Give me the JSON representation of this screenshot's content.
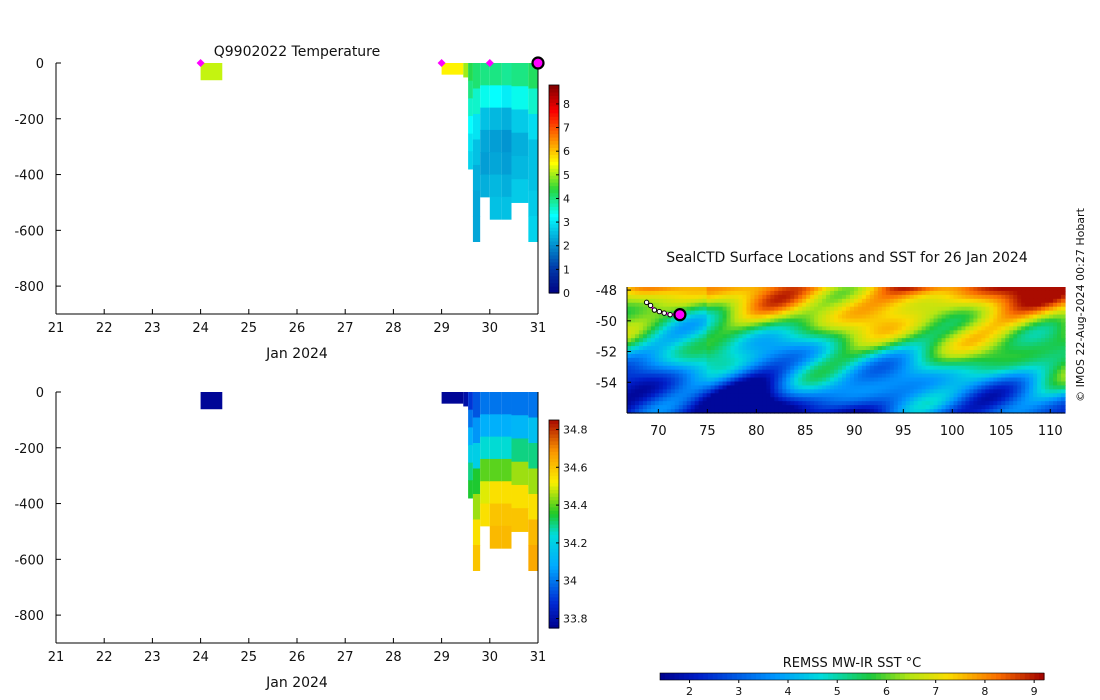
{
  "figure_title": "Q9902022  Temperature",
  "map_title": "SealCTD Surface Locations and SST for 26 Jan 2024",
  "credit": "© IMOS 22-Aug-2024 00:27 Hobart",
  "colors": {
    "magenta": "#ff00ff",
    "profile_marker": "#ff00ff",
    "sst_ring": "#000000"
  },
  "chart_data": [
    {
      "name": "temperature-section",
      "type": "heatmap",
      "title": "Q9902022  Temperature",
      "xlabel": "Jan 2024",
      "ylabel": "",
      "xlim": [
        21,
        31
      ],
      "ylim": [
        -900,
        0
      ],
      "x_ticks": [
        "21",
        "22",
        "23",
        "24",
        "25",
        "26",
        "27",
        "28",
        "29",
        "30",
        "31"
      ],
      "y_ticks": [
        "0",
        "-200",
        "-400",
        "-600",
        "-800"
      ],
      "y_tick_values": [
        0,
        -200,
        -400,
        -600,
        -800
      ],
      "colorbar": {
        "min": 0,
        "max": 8.8,
        "ticks": [
          "0",
          "1",
          "2",
          "3",
          "4",
          "5",
          "6",
          "7",
          "8"
        ],
        "tick_values": [
          0,
          1,
          2,
          3,
          4,
          5,
          6,
          7,
          8
        ]
      },
      "profile_markers_day": [
        24.0,
        29.0,
        30.0,
        31.0
      ],
      "columns": [
        {
          "x0": 24.0,
          "x1": 24.45,
          "depth": [
            0,
            -60
          ],
          "values": [
            5.2
          ]
        },
        {
          "x0": 29.0,
          "x1": 29.45,
          "depth": [
            0,
            -40
          ],
          "values": [
            5.6
          ]
        },
        {
          "x0": 29.45,
          "x1": 29.55,
          "depth": [
            0,
            -50
          ],
          "values": [
            5.0
          ]
        },
        {
          "x0": 29.55,
          "x1": 29.65,
          "depth": [
            0,
            -380
          ],
          "values": [
            4.3,
            4.0,
            3.6,
            3.3,
            3.0,
            2.8
          ]
        },
        {
          "x0": 29.65,
          "x1": 29.8,
          "depth": [
            0,
            -640
          ],
          "values": [
            4.1,
            3.6,
            3.0,
            2.6,
            2.4,
            2.3,
            2.3
          ]
        },
        {
          "x0": 29.8,
          "x1": 30.0,
          "depth": [
            0,
            -480
          ],
          "values": [
            4.0,
            3.4,
            2.6,
            2.3,
            2.2,
            2.4
          ]
        },
        {
          "x0": 30.0,
          "x1": 30.25,
          "depth": [
            0,
            -560
          ],
          "values": [
            4.0,
            3.3,
            2.5,
            2.2,
            2.3,
            2.5,
            2.6
          ]
        },
        {
          "x0": 30.25,
          "x1": 30.45,
          "depth": [
            0,
            -560
          ],
          "values": [
            3.9,
            3.1,
            2.4,
            2.1,
            2.2,
            2.4,
            2.6
          ]
        },
        {
          "x0": 30.45,
          "x1": 30.8,
          "depth": [
            0,
            -500
          ],
          "values": [
            4.0,
            3.4,
            2.7,
            2.4,
            2.5,
            2.7
          ]
        },
        {
          "x0": 30.8,
          "x1": 31.0,
          "depth": [
            0,
            -640
          ],
          "values": [
            4.2,
            3.6,
            2.9,
            2.6,
            2.6,
            2.7,
            2.8
          ]
        }
      ]
    },
    {
      "name": "salinity-section",
      "type": "heatmap",
      "title": "",
      "xlabel": "Jan 2024",
      "ylabel": "",
      "xlim": [
        21,
        31
      ],
      "ylim": [
        -900,
        0
      ],
      "x_ticks": [
        "21",
        "22",
        "23",
        "24",
        "25",
        "26",
        "27",
        "28",
        "29",
        "30",
        "31"
      ],
      "y_ticks": [
        "0",
        "-200",
        "-400",
        "-600",
        "-800"
      ],
      "y_tick_values": [
        0,
        -200,
        -400,
        -600,
        -800
      ],
      "colorbar": {
        "min": 33.75,
        "max": 34.85,
        "ticks": [
          "33.8",
          "34",
          "34.2",
          "34.4",
          "34.6",
          "34.8"
        ],
        "tick_values": [
          33.8,
          34.0,
          34.2,
          34.4,
          34.6,
          34.8
        ]
      },
      "columns": [
        {
          "x0": 24.0,
          "x1": 24.45,
          "depth": [
            0,
            -60
          ],
          "values": [
            33.77
          ]
        },
        {
          "x0": 29.0,
          "x1": 29.45,
          "depth": [
            0,
            -40
          ],
          "values": [
            33.77
          ]
        },
        {
          "x0": 29.45,
          "x1": 29.55,
          "depth": [
            0,
            -50
          ],
          "values": [
            33.8
          ]
        },
        {
          "x0": 29.55,
          "x1": 29.65,
          "depth": [
            0,
            -380
          ],
          "values": [
            33.9,
            34.0,
            34.1,
            34.2,
            34.3,
            34.35
          ]
        },
        {
          "x0": 29.65,
          "x1": 29.8,
          "depth": [
            0,
            -640
          ],
          "values": [
            33.95,
            34.05,
            34.2,
            34.35,
            34.45,
            34.55,
            34.6
          ]
        },
        {
          "x0": 29.8,
          "x1": 30.0,
          "depth": [
            0,
            -480
          ],
          "values": [
            34.0,
            34.1,
            34.25,
            34.4,
            34.5,
            34.55
          ]
        },
        {
          "x0": 30.0,
          "x1": 30.25,
          "depth": [
            0,
            -560
          ],
          "values": [
            34.0,
            34.1,
            34.25,
            34.4,
            34.55,
            34.6,
            34.62
          ]
        },
        {
          "x0": 30.25,
          "x1": 30.45,
          "depth": [
            0,
            -560
          ],
          "values": [
            34.0,
            34.1,
            34.25,
            34.4,
            34.55,
            34.6,
            34.62
          ]
        },
        {
          "x0": 30.45,
          "x1": 30.8,
          "depth": [
            0,
            -500
          ],
          "values": [
            34.0,
            34.12,
            34.3,
            34.45,
            34.55,
            34.6
          ]
        },
        {
          "x0": 30.8,
          "x1": 31.0,
          "depth": [
            0,
            -640
          ],
          "values": [
            34.0,
            34.15,
            34.3,
            34.45,
            34.55,
            34.62,
            34.65
          ]
        }
      ]
    },
    {
      "name": "sst-map",
      "type": "heatmap",
      "title": "SealCTD Surface Locations and SST for 26 Jan 2024",
      "xlabel": "",
      "ylabel": "",
      "xlim": [
        66.8,
        111.5
      ],
      "ylim": [
        -56.0,
        -47.8
      ],
      "x_ticks": [
        "70",
        "75",
        "80",
        "85",
        "90",
        "95",
        "100",
        "105",
        "110"
      ],
      "x_tick_values": [
        70,
        75,
        80,
        85,
        90,
        95,
        100,
        105,
        110
      ],
      "y_ticks": [
        "-48",
        "-50",
        "-52",
        "-54"
      ],
      "y_tick_values": [
        -48,
        -50,
        -52,
        -54
      ],
      "colorbar": {
        "label": "REMSS MW-IR SST °C",
        "min": 1.4,
        "max": 9.2,
        "ticks": [
          "2",
          "3",
          "4",
          "5",
          "6",
          "7",
          "8",
          "9"
        ],
        "tick_values": [
          2,
          3,
          4,
          5,
          6,
          7,
          8,
          9
        ]
      },
      "seal_track": [
        [
          68.8,
          -48.8
        ],
        [
          69.2,
          -49.0
        ],
        [
          69.6,
          -49.3
        ],
        [
          70.1,
          -49.4
        ],
        [
          70.6,
          -49.5
        ],
        [
          71.2,
          -49.6
        ],
        [
          72.2,
          -49.6
        ]
      ],
      "latest_position": [
        72.2,
        -49.6
      ],
      "sst_field_note": "cold water (~2-3 °C) south-west, warm water (~8-9 °C) north-east"
    }
  ]
}
